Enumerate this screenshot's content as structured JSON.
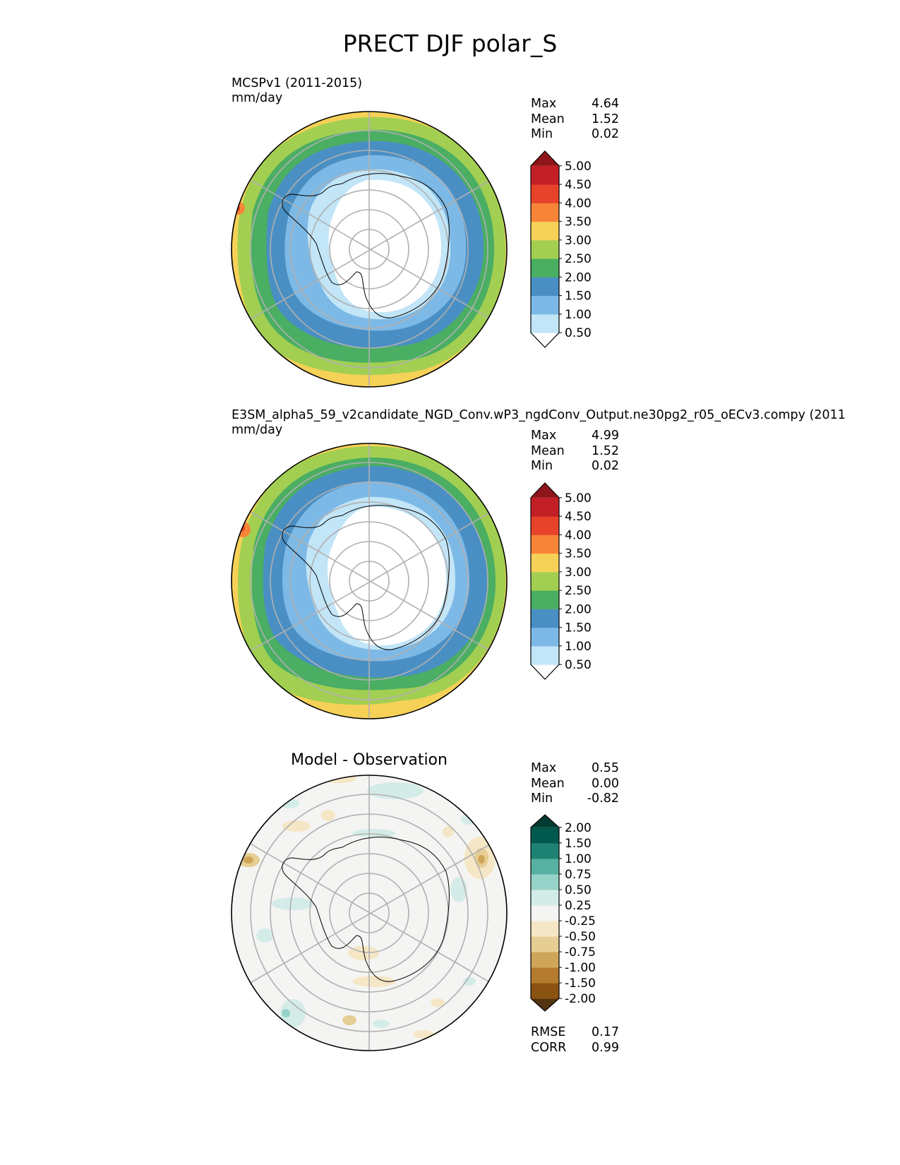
{
  "title": "PRECT DJF polar_S",
  "panels": [
    {
      "id": "test",
      "label_line1": "MCSPv1 (2011-2015)",
      "label_line2": "mm/day",
      "stats": [
        {
          "label": "Max",
          "value": "4.64"
        },
        {
          "label": "Mean",
          "value": "1.52"
        },
        {
          "label": "Min",
          "value": "0.02"
        }
      ],
      "colorbar": {
        "colors": [
          "#ffffff",
          "#c2e5f7",
          "#7db9e6",
          "#4a8fc4",
          "#4aae63",
          "#a2cf52",
          "#f6d157",
          "#f78537",
          "#e7432a",
          "#c21f26",
          "#8e1519"
        ],
        "ticks": [
          "0.50",
          "1.00",
          "1.50",
          "2.00",
          "2.50",
          "3.00",
          "3.50",
          "4.00",
          "4.50",
          "5.00"
        ]
      }
    },
    {
      "id": "ref",
      "label_line1": "E3SM_alpha5_59_v2candidate_NGD_Conv.wP3_ngdConv_Output.ne30pg2_r05_oECv3.compy (2011",
      "label_line2": "mm/day",
      "stats": [
        {
          "label": "Max",
          "value": "4.99"
        },
        {
          "label": "Mean",
          "value": "1.52"
        },
        {
          "label": "Min",
          "value": "0.02"
        }
      ],
      "colorbar": {
        "colors": [
          "#ffffff",
          "#c2e5f7",
          "#7db9e6",
          "#4a8fc4",
          "#4aae63",
          "#a2cf52",
          "#f6d157",
          "#f78537",
          "#e7432a",
          "#c21f26",
          "#8e1519"
        ],
        "ticks": [
          "0.50",
          "1.00",
          "1.50",
          "2.00",
          "2.50",
          "3.00",
          "3.50",
          "4.00",
          "4.50",
          "5.00"
        ]
      }
    },
    {
      "id": "diff",
      "subtitle": "Model - Observation",
      "stats": [
        {
          "label": "Max",
          "value": "0.55"
        },
        {
          "label": "Mean",
          "value": "0.00"
        },
        {
          "label": "Min",
          "value": "-0.82"
        }
      ],
      "colorbar": {
        "colors": [
          "#533410",
          "#8a5312",
          "#b47a2e",
          "#cfa659",
          "#e6cd93",
          "#f5e6c6",
          "#f4f4f2",
          "#d4ece8",
          "#97d2c8",
          "#58b0a2",
          "#1d8272",
          "#00594c",
          "#003c31"
        ],
        "ticks": [
          "-2.00",
          "-1.50",
          "-1.00",
          "-0.75",
          "-0.50",
          "-0.25",
          "0.25",
          "0.50",
          "0.75",
          "1.00",
          "1.50",
          "2.00"
        ]
      },
      "metrics": [
        {
          "label": "RMSE",
          "value": "0.17"
        },
        {
          "label": "CORR",
          "value": "0.99"
        }
      ]
    }
  ]
}
